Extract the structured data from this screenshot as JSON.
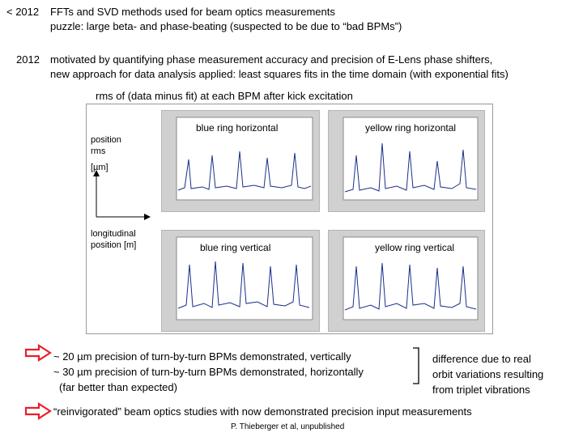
{
  "top_lines": [
    {
      "prefix": "< 2012",
      "line1": "FFTs and SVD methods used for beam optics measurements",
      "line2": "puzzle: large beta- and phase-beating (suspected to be due to “bad BPMs”)"
    },
    {
      "prefix": "2012",
      "line1": "motivated by quantifying phase measurement accuracy and precision of E-Lens phase shifters,",
      "line2": "new approach for data analysis applied: least squares fits in the time domain (with exponential fits)"
    }
  ],
  "figure_caption": "rms of (data minus fit) at each BPM after kick excitation",
  "axis_y_label": [
    "position",
    "rms",
    "[µm]"
  ],
  "axis_x_label": [
    "longitudinal",
    "position [m]"
  ],
  "plots": [
    {
      "label": "blue ring horizontal"
    },
    {
      "label": "yellow ring horizontal"
    },
    {
      "label": "blue ring vertical"
    },
    {
      "label": "yellow ring vertical"
    }
  ],
  "results": [
    "~ 20 µm precision of turn-by-turn BPMs demonstrated, vertically",
    "~ 30 µm precision of turn-by-turn BPMs demonstrated, horizontally",
    "(far better than expected)"
  ],
  "difference_note": [
    "difference due to real",
    "orbit variations resulting",
    "from triplet vibrations"
  ],
  "conclusion": "“reinvigorated” beam optics studies with now demonstrated precision input measurements",
  "citation": "P. Thieberger et al, unpublished",
  "colors": {
    "arrow": "#e8202a",
    "plot_bg": "#d0d0d0",
    "trace": "#1a2f8a"
  }
}
